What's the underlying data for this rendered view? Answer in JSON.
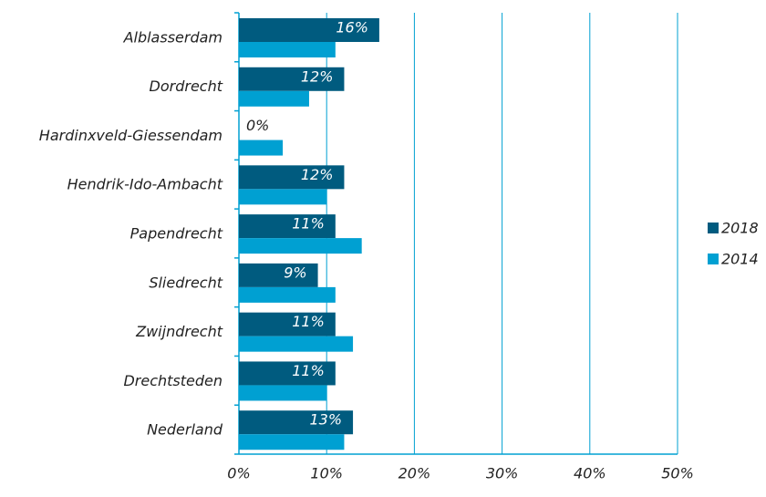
{
  "chart_data": {
    "type": "hbar",
    "categories": [
      "Alblasserdam",
      "Dordrecht",
      "Hardinxveld-Giessendam",
      "Hendrik-Ido-Ambacht",
      "Papendrecht",
      "Sliedrecht",
      "Zwijndrecht",
      "Drechtsteden",
      "Nederland"
    ],
    "series": [
      {
        "name": "2018",
        "color": "#005b7f",
        "values": [
          16,
          12,
          0,
          12,
          11,
          9,
          11,
          11,
          13
        ],
        "value_labels": [
          "16%",
          "12%",
          "0%",
          "12%",
          "11%",
          "9%",
          "11%",
          "11%",
          "13%"
        ]
      },
      {
        "name": "2014",
        "color": "#00a0d2",
        "values": [
          11,
          8,
          5,
          10,
          14,
          11,
          13,
          10,
          12
        ]
      }
    ],
    "xlim": [
      0,
      50
    ],
    "xticks": [
      {
        "value": 0,
        "label": "0%"
      },
      {
        "value": 10,
        "label": "10%"
      },
      {
        "value": 20,
        "label": "20%"
      },
      {
        "value": 30,
        "label": "30%"
      },
      {
        "value": 40,
        "label": "40%"
      },
      {
        "value": 50,
        "label": "50%"
      }
    ],
    "grid": true,
    "legend": "right"
  }
}
